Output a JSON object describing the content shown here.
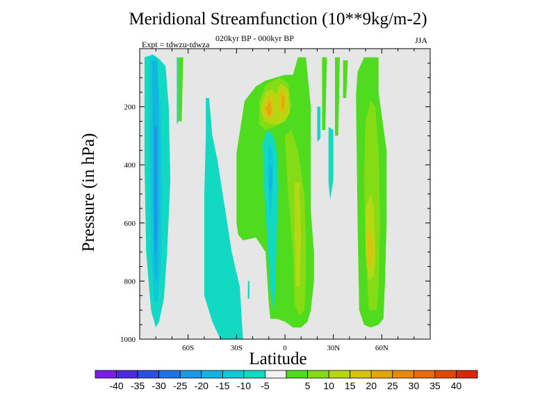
{
  "chart_data": {
    "type": "heatmap",
    "title": "Meridional Streamfunction (10**9kg/m-2)",
    "subtitle": "020kyr BP - 000kyr BP",
    "left_label": "Expt = tdwzu-tdwza",
    "right_label": "JJA",
    "xlabel": "Latitude",
    "ylabel": "Pressure (in hPa)",
    "xlim": [
      -90,
      90
    ],
    "ylim": [
      0,
      1000
    ],
    "x_ticks": [
      {
        "value": -60,
        "label": "60S"
      },
      {
        "value": -30,
        "label": "30S"
      },
      {
        "value": 0,
        "label": "0"
      },
      {
        "value": 30,
        "label": "30N"
      },
      {
        "value": 60,
        "label": "60N"
      }
    ],
    "y_ticks": [
      {
        "value": 200,
        "label": "200"
      },
      {
        "value": 400,
        "label": "400"
      },
      {
        "value": 600,
        "label": "600"
      },
      {
        "value": 800,
        "label": "800"
      },
      {
        "value": 1000,
        "label": "1000"
      }
    ],
    "background_color": "#e6e6e6",
    "colorbar": {
      "colors": [
        "#7a1ee6",
        "#4b2adf",
        "#2c4ee3",
        "#1e73e8",
        "#1a9ae6",
        "#12b5e0",
        "#10c9d8",
        "#12d9c2",
        "#f2f2f2",
        "#4fdc1e",
        "#86dc14",
        "#b5d812",
        "#d8c40e",
        "#e3a60c",
        "#e88a0a",
        "#e86a08",
        "#e04806",
        "#d82808"
      ],
      "labels": [
        "-40",
        "-35",
        "-30",
        "-25",
        "-20",
        "-15",
        "-10",
        "-5",
        "5",
        "10",
        "15",
        "20",
        "25",
        "30",
        "35",
        "40"
      ]
    },
    "regions": [
      {
        "class": -10,
        "pts": [
          [
            -87,
            30
          ],
          [
            -82,
            20
          ],
          [
            -78,
            35
          ],
          [
            -74,
            60
          ],
          [
            -72,
            200
          ],
          [
            -71,
            450
          ],
          [
            -73,
            700
          ],
          [
            -75,
            860
          ],
          [
            -78,
            940
          ],
          [
            -80,
            960
          ],
          [
            -83,
            900
          ],
          [
            -86,
            700
          ],
          [
            -87,
            400
          ]
        ]
      },
      {
        "class": -15,
        "pts": [
          [
            -84,
            30
          ],
          [
            -80,
            25
          ],
          [
            -77,
            200
          ],
          [
            -76,
            500
          ],
          [
            -77,
            760
          ],
          [
            -79,
            880
          ],
          [
            -81,
            870
          ],
          [
            -83,
            700
          ],
          [
            -84,
            400
          ]
        ]
      },
      {
        "class": -20,
        "pts": [
          [
            -82,
            40
          ],
          [
            -79,
            40
          ],
          [
            -78,
            300
          ],
          [
            -78,
            600
          ],
          [
            -79,
            800
          ],
          [
            -81,
            790
          ],
          [
            -82,
            500
          ]
        ]
      },
      {
        "class": -25,
        "pts": [
          [
            -81,
            260
          ],
          [
            -79,
            280
          ],
          [
            -79,
            600
          ],
          [
            -80,
            730
          ],
          [
            -81,
            650
          ]
        ]
      },
      {
        "class": -10,
        "pts": [
          [
            -67,
            30
          ],
          [
            -66,
            30
          ],
          [
            -66,
            250
          ],
          [
            -67,
            260
          ]
        ]
      },
      {
        "class": -10,
        "pts": [
          [
            -49,
            170
          ],
          [
            -47,
            170
          ],
          [
            -45,
            300
          ],
          [
            -42,
            380
          ],
          [
            -38,
            520
          ],
          [
            -33,
            700
          ],
          [
            -28,
            820
          ],
          [
            -26,
            1000
          ],
          [
            -40,
            1000
          ],
          [
            -45,
            940
          ],
          [
            -50,
            850
          ],
          [
            -50,
            500
          ],
          [
            -49,
            300
          ]
        ]
      },
      {
        "class": 5,
        "pts": [
          [
            -66,
            30
          ],
          [
            -63,
            30
          ],
          [
            -64,
            250
          ],
          [
            -66,
            250
          ]
        ]
      },
      {
        "class": 5,
        "pts": [
          [
            -30,
            360
          ],
          [
            -25,
            180
          ],
          [
            -18,
            130
          ],
          [
            -12,
            110
          ],
          [
            -6,
            100
          ],
          [
            0,
            90
          ],
          [
            5,
            90
          ],
          [
            8,
            30
          ],
          [
            13,
            30
          ],
          [
            16,
            200
          ],
          [
            16,
            420
          ],
          [
            16,
            560
          ],
          [
            18,
            700
          ],
          [
            18,
            800
          ],
          [
            16,
            900
          ],
          [
            14,
            940
          ],
          [
            10,
            960
          ],
          [
            5,
            960
          ],
          [
            0,
            940
          ],
          [
            -5,
            930
          ],
          [
            -9,
            930
          ],
          [
            -10,
            880
          ],
          [
            -12,
            700
          ],
          [
            -18,
            650
          ],
          [
            -26,
            660
          ],
          [
            -29,
            640
          ],
          [
            -30,
            600
          ]
        ]
      },
      {
        "class": 5,
        "pts": [
          [
            23,
            30
          ],
          [
            26,
            30
          ],
          [
            25,
            280
          ],
          [
            23,
            280
          ]
        ]
      },
      {
        "class": 5,
        "pts": [
          [
            31,
            30
          ],
          [
            34,
            30
          ],
          [
            33,
            300
          ],
          [
            31,
            300
          ]
        ]
      },
      {
        "class": 5,
        "pts": [
          [
            36,
            40
          ],
          [
            39,
            40
          ],
          [
            38,
            170
          ],
          [
            36,
            170
          ]
        ]
      },
      {
        "class": 10,
        "pts": [
          [
            -16,
            180
          ],
          [
            -12,
            125
          ],
          [
            -7,
            110
          ],
          [
            -3,
            100
          ],
          [
            2,
            120
          ],
          [
            4,
            200
          ],
          [
            1,
            240
          ],
          [
            -3,
            260
          ],
          [
            -7,
            270
          ],
          [
            -12,
            280
          ],
          [
            -16,
            260
          ]
        ]
      },
      {
        "class": 10,
        "pts": [
          [
            0,
            300
          ],
          [
            4,
            280
          ],
          [
            8,
            350
          ],
          [
            12,
            500
          ],
          [
            13,
            650
          ],
          [
            13,
            800
          ],
          [
            12,
            900
          ],
          [
            9,
            920
          ],
          [
            6,
            880
          ],
          [
            5,
            700
          ],
          [
            2,
            500
          ]
        ]
      },
      {
        "class": 15,
        "pts": [
          [
            -15,
            200
          ],
          [
            -12,
            150
          ],
          [
            -8,
            140
          ],
          [
            -5,
            160
          ],
          [
            -3,
            120
          ],
          [
            2,
            140
          ],
          [
            3,
            220
          ],
          [
            0,
            250
          ],
          [
            -4,
            260
          ],
          [
            -8,
            260
          ],
          [
            -13,
            250
          ]
        ]
      },
      {
        "class": 15,
        "pts": [
          [
            6,
            460
          ],
          [
            9,
            460
          ],
          [
            10,
            650
          ],
          [
            9,
            820
          ],
          [
            7,
            820
          ],
          [
            6,
            650
          ]
        ]
      },
      {
        "class": 20,
        "pts": [
          [
            -13,
            200
          ],
          [
            -10,
            160
          ],
          [
            -7,
            175
          ],
          [
            -7,
            230
          ],
          [
            -10,
            240
          ],
          [
            -13,
            230
          ]
        ]
      },
      {
        "class": 20,
        "pts": [
          [
            -3,
            140
          ],
          [
            0,
            145
          ],
          [
            0,
            220
          ],
          [
            -2,
            225
          ],
          [
            -4,
            200
          ]
        ]
      },
      {
        "class": 25,
        "pts": [
          [
            -12,
            205
          ],
          [
            -9,
            180
          ],
          [
            -8,
            220
          ],
          [
            -10,
            235
          ]
        ]
      },
      {
        "class": 25,
        "pts": [
          [
            -2,
            160
          ],
          [
            0,
            165
          ],
          [
            -1,
            210
          ],
          [
            -2,
            205
          ]
        ]
      },
      {
        "class": 5,
        "pts": [
          [
            44,
            160
          ],
          [
            45,
            80
          ],
          [
            49,
            30
          ],
          [
            58,
            30
          ],
          [
            58,
            150
          ],
          [
            60,
            230
          ],
          [
            63,
            350
          ],
          [
            63,
            600
          ],
          [
            62,
            800
          ],
          [
            61,
            930
          ],
          [
            58,
            950
          ],
          [
            53,
            960
          ],
          [
            49,
            950
          ],
          [
            46,
            900
          ],
          [
            45,
            600
          ]
        ]
      },
      {
        "class": 10,
        "pts": [
          [
            50,
            250
          ],
          [
            53,
            180
          ],
          [
            56,
            200
          ],
          [
            58,
            350
          ],
          [
            59,
            600
          ],
          [
            58,
            820
          ],
          [
            57,
            900
          ],
          [
            52,
            900
          ],
          [
            50,
            700
          ],
          [
            49,
            450
          ]
        ]
      },
      {
        "class": 15,
        "pts": [
          [
            50,
            550
          ],
          [
            53,
            500
          ],
          [
            55,
            540
          ],
          [
            56,
            700
          ],
          [
            55,
            780
          ],
          [
            52,
            800
          ],
          [
            50,
            700
          ]
        ]
      },
      {
        "class": 20,
        "pts": [
          [
            51,
            640
          ],
          [
            53,
            620
          ],
          [
            55,
            700
          ],
          [
            53,
            760
          ],
          [
            51,
            740
          ]
        ]
      },
      {
        "class": -10,
        "pts": [
          [
            -14,
            330
          ],
          [
            -11,
            280
          ],
          [
            -7,
            300
          ],
          [
            -5,
            360
          ],
          [
            -4,
            470
          ],
          [
            -5,
            620
          ],
          [
            -6,
            820
          ],
          [
            -7,
            910
          ],
          [
            -9,
            840
          ],
          [
            -11,
            650
          ],
          [
            -13,
            480
          ]
        ]
      },
      {
        "class": -15,
        "pts": [
          [
            -10,
            330
          ],
          [
            -8,
            340
          ],
          [
            -7,
            420
          ],
          [
            -8,
            520
          ],
          [
            -9,
            590
          ],
          [
            -10,
            520
          ],
          [
            -11,
            420
          ]
        ]
      },
      {
        "class": -20,
        "pts": [
          [
            -9,
            400
          ],
          [
            -8,
            410
          ],
          [
            -8,
            480
          ],
          [
            -9,
            500
          ],
          [
            -10,
            470
          ]
        ]
      },
      {
        "class": -10,
        "pts": [
          [
            27,
            270
          ],
          [
            30,
            280
          ],
          [
            30,
            450
          ],
          [
            28,
            520
          ],
          [
            27,
            460
          ]
        ]
      },
      {
        "class": -10,
        "pts": [
          [
            20,
            200
          ],
          [
            22,
            200
          ],
          [
            22,
            310
          ],
          [
            20,
            320
          ]
        ]
      },
      {
        "class": -10,
        "pts": [
          [
            -23,
            800
          ],
          [
            -22,
            800
          ],
          [
            -22,
            860
          ],
          [
            -23,
            860
          ]
        ]
      }
    ]
  }
}
